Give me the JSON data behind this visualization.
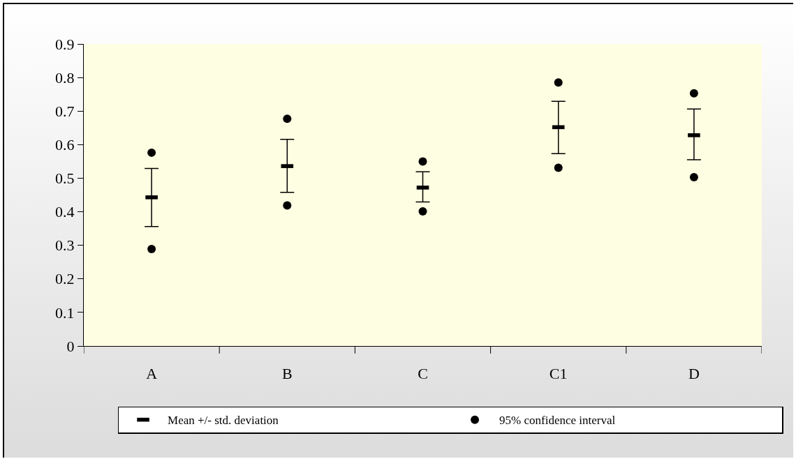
{
  "chart_data": {
    "type": "scatter",
    "categories": [
      "A",
      "B",
      "C",
      "C1",
      "D"
    ],
    "ylim": [
      0,
      0.9
    ],
    "yticks": [
      0,
      0.1,
      0.2,
      0.3,
      0.4,
      0.5,
      0.6,
      0.7,
      0.8,
      0.9
    ],
    "grid": false,
    "legend": "bottom",
    "series": [
      {
        "name": "Mean +/- std. deviation",
        "color": "#000000",
        "marker": "square",
        "values": [
          0.443,
          0.536,
          0.472,
          0.652,
          0.628
        ],
        "errors": [
          [
            0.356,
            0.529
          ],
          [
            0.458,
            0.616
          ],
          [
            0.429,
            0.519
          ],
          [
            0.573,
            0.729
          ],
          [
            0.555,
            0.706
          ]
        ]
      },
      {
        "name": "95% confidence interval",
        "color": "#000000",
        "marker": "circle",
        "x": [
          "A",
          "A",
          "B",
          "B",
          "C",
          "C",
          "C1",
          "C1",
          "D",
          "D"
        ],
        "values": [
          0.576,
          0.289,
          0.677,
          0.419,
          0.55,
          0.401,
          0.785,
          0.531,
          0.753,
          0.503
        ]
      }
    ]
  }
}
